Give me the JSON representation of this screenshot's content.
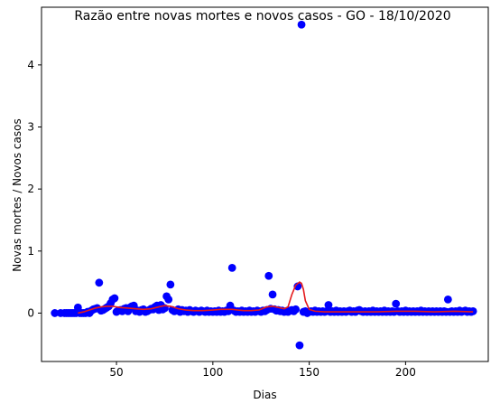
{
  "chart_data": {
    "type": "scatter",
    "title": "Razão entre novas mortes e novos casos - GO - 18/10/2020",
    "xlabel": "Dias",
    "ylabel": "Novas mortes / Novos casos",
    "xlim": [
      11.1,
      242.9
    ],
    "ylim": [
      -0.78,
      4.93
    ],
    "xticks": [
      50,
      100,
      150,
      200
    ],
    "yticks": [
      0,
      1,
      2,
      3,
      4
    ],
    "grid": false,
    "colors": {
      "points": "#0000ff",
      "trend": "#e41a1c"
    },
    "series": [
      {
        "kind": "points",
        "points": [
          [
            18,
            0.0
          ],
          [
            21,
            0.0
          ],
          [
            23,
            0.0
          ],
          [
            24,
            0.0
          ],
          [
            25,
            0.0
          ],
          [
            26,
            0.0
          ],
          [
            27,
            0.0
          ],
          [
            28,
            0.0
          ],
          [
            29,
            0.0
          ],
          [
            30,
            0.09
          ],
          [
            31,
            0.0
          ],
          [
            32,
            0.0
          ],
          [
            33,
            0.0
          ],
          [
            34,
            0.0
          ],
          [
            35,
            0.02
          ],
          [
            36,
            0.0
          ],
          [
            37,
            0.04
          ],
          [
            38,
            0.06
          ],
          [
            39,
            0.07
          ],
          [
            40,
            0.08
          ],
          [
            41,
            0.49
          ],
          [
            42,
            0.04
          ],
          [
            43,
            0.05
          ],
          [
            44,
            0.07
          ],
          [
            45,
            0.09
          ],
          [
            46,
            0.11
          ],
          [
            47,
            0.16
          ],
          [
            48,
            0.22
          ],
          [
            49,
            0.24
          ],
          [
            50,
            0.02
          ],
          [
            51,
            0.04
          ],
          [
            52,
            0.05
          ],
          [
            53,
            0.03
          ],
          [
            54,
            0.07
          ],
          [
            55,
            0.08
          ],
          [
            56,
            0.03
          ],
          [
            57,
            0.09
          ],
          [
            58,
            0.11
          ],
          [
            59,
            0.12
          ],
          [
            60,
            0.03
          ],
          [
            61,
            0.04
          ],
          [
            62,
            0.02
          ],
          [
            63,
            0.05
          ],
          [
            64,
            0.06
          ],
          [
            65,
            0.02
          ],
          [
            66,
            0.03
          ],
          [
            67,
            0.05
          ],
          [
            68,
            0.07
          ],
          [
            69,
            0.06
          ],
          [
            70,
            0.1
          ],
          [
            71,
            0.12
          ],
          [
            72,
            0.05
          ],
          [
            73,
            0.13
          ],
          [
            74,
            0.06
          ],
          [
            75,
            0.08
          ],
          [
            76,
            0.27
          ],
          [
            77,
            0.22
          ],
          [
            78,
            0.46
          ],
          [
            79,
            0.05
          ],
          [
            80,
            0.03
          ],
          [
            81,
            0.04
          ],
          [
            82,
            0.06
          ],
          [
            83,
            0.02
          ],
          [
            84,
            0.05
          ],
          [
            85,
            0.03
          ],
          [
            86,
            0.04
          ],
          [
            87,
            0.02
          ],
          [
            88,
            0.05
          ],
          [
            89,
            0.03
          ],
          [
            90,
            0.02
          ],
          [
            91,
            0.04
          ],
          [
            92,
            0.03
          ],
          [
            93,
            0.02
          ],
          [
            94,
            0.04
          ],
          [
            95,
            0.03
          ],
          [
            96,
            0.02
          ],
          [
            97,
            0.04
          ],
          [
            98,
            0.02
          ],
          [
            99,
            0.03
          ],
          [
            100,
            0.02
          ],
          [
            101,
            0.03
          ],
          [
            102,
            0.02
          ],
          [
            103,
            0.04
          ],
          [
            104,
            0.02
          ],
          [
            105,
            0.03
          ],
          [
            106,
            0.02
          ],
          [
            107,
            0.04
          ],
          [
            108,
            0.03
          ],
          [
            109,
            0.12
          ],
          [
            110,
            0.73
          ],
          [
            111,
            0.04
          ],
          [
            112,
            0.02
          ],
          [
            113,
            0.03
          ],
          [
            114,
            0.02
          ],
          [
            115,
            0.04
          ],
          [
            116,
            0.02
          ],
          [
            117,
            0.03
          ],
          [
            118,
            0.02
          ],
          [
            119,
            0.04
          ],
          [
            120,
            0.02
          ],
          [
            121,
            0.03
          ],
          [
            122,
            0.02
          ],
          [
            123,
            0.04
          ],
          [
            124,
            0.03
          ],
          [
            125,
            0.02
          ],
          [
            126,
            0.04
          ],
          [
            127,
            0.03
          ],
          [
            128,
            0.05
          ],
          [
            129,
            0.6
          ],
          [
            130,
            0.07
          ],
          [
            131,
            0.3
          ],
          [
            132,
            0.06
          ],
          [
            133,
            0.04
          ],
          [
            134,
            0.05
          ],
          [
            135,
            0.03
          ],
          [
            136,
            0.04
          ],
          [
            137,
            0.02
          ],
          [
            138,
            0.03
          ],
          [
            139,
            0.02
          ],
          [
            140,
            0.04
          ],
          [
            141,
            0.05
          ],
          [
            142,
            0.03
          ],
          [
            143,
            0.06
          ],
          [
            144,
            0.43
          ],
          [
            145,
            -0.52
          ],
          [
            146,
            4.65
          ],
          [
            147,
            0.02
          ],
          [
            148,
            0.03
          ],
          [
            149,
            0.0
          ],
          [
            150,
            0.02
          ],
          [
            151,
            0.03
          ],
          [
            152,
            0.02
          ],
          [
            153,
            0.04
          ],
          [
            154,
            0.02
          ],
          [
            155,
            0.03
          ],
          [
            156,
            0.02
          ],
          [
            157,
            0.03
          ],
          [
            158,
            0.02
          ],
          [
            159,
            0.03
          ],
          [
            160,
            0.13
          ],
          [
            161,
            0.02
          ],
          [
            162,
            0.03
          ],
          [
            163,
            0.02
          ],
          [
            164,
            0.04
          ],
          [
            165,
            0.02
          ],
          [
            166,
            0.03
          ],
          [
            167,
            0.02
          ],
          [
            168,
            0.03
          ],
          [
            169,
            0.02
          ],
          [
            170,
            0.03
          ],
          [
            171,
            0.04
          ],
          [
            172,
            0.02
          ],
          [
            173,
            0.03
          ],
          [
            174,
            0.02
          ],
          [
            175,
            0.04
          ],
          [
            176,
            0.05
          ],
          [
            177,
            0.03
          ],
          [
            178,
            0.02
          ],
          [
            179,
            0.03
          ],
          [
            180,
            0.02
          ],
          [
            181,
            0.03
          ],
          [
            182,
            0.02
          ],
          [
            183,
            0.04
          ],
          [
            184,
            0.02
          ],
          [
            185,
            0.03
          ],
          [
            186,
            0.02
          ],
          [
            187,
            0.03
          ],
          [
            188,
            0.02
          ],
          [
            189,
            0.04
          ],
          [
            190,
            0.02
          ],
          [
            191,
            0.03
          ],
          [
            192,
            0.02
          ],
          [
            193,
            0.03
          ],
          [
            194,
            0.02
          ],
          [
            195,
            0.15
          ],
          [
            196,
            0.03
          ],
          [
            197,
            0.02
          ],
          [
            198,
            0.03
          ],
          [
            199,
            0.02
          ],
          [
            200,
            0.04
          ],
          [
            201,
            0.02
          ],
          [
            202,
            0.03
          ],
          [
            203,
            0.02
          ],
          [
            204,
            0.03
          ],
          [
            205,
            0.02
          ],
          [
            206,
            0.03
          ],
          [
            207,
            0.02
          ],
          [
            208,
            0.04
          ],
          [
            209,
            0.02
          ],
          [
            210,
            0.03
          ],
          [
            211,
            0.02
          ],
          [
            212,
            0.03
          ],
          [
            213,
            0.02
          ],
          [
            214,
            0.03
          ],
          [
            215,
            0.02
          ],
          [
            216,
            0.03
          ],
          [
            217,
            0.02
          ],
          [
            218,
            0.03
          ],
          [
            219,
            0.02
          ],
          [
            220,
            0.03
          ],
          [
            221,
            0.02
          ],
          [
            222,
            0.22
          ],
          [
            223,
            0.02
          ],
          [
            224,
            0.03
          ],
          [
            225,
            0.02
          ],
          [
            226,
            0.03
          ],
          [
            227,
            0.02
          ],
          [
            228,
            0.04
          ],
          [
            229,
            0.02
          ],
          [
            230,
            0.03
          ],
          [
            231,
            0.04
          ],
          [
            232,
            0.02
          ],
          [
            233,
            0.03
          ],
          [
            234,
            0.02
          ],
          [
            235,
            0.03
          ]
        ]
      },
      {
        "kind": "line",
        "points": [
          [
            30,
            0.0
          ],
          [
            33,
            0.02
          ],
          [
            36,
            0.05
          ],
          [
            39,
            0.08
          ],
          [
            42,
            0.1
          ],
          [
            45,
            0.11
          ],
          [
            48,
            0.11
          ],
          [
            52,
            0.09
          ],
          [
            56,
            0.08
          ],
          [
            60,
            0.07
          ],
          [
            64,
            0.06
          ],
          [
            68,
            0.07
          ],
          [
            72,
            0.1
          ],
          [
            75,
            0.12
          ],
          [
            78,
            0.11
          ],
          [
            82,
            0.07
          ],
          [
            86,
            0.05
          ],
          [
            90,
            0.04
          ],
          [
            95,
            0.04
          ],
          [
            100,
            0.05
          ],
          [
            104,
            0.06
          ],
          [
            108,
            0.06
          ],
          [
            110,
            0.06
          ],
          [
            113,
            0.05
          ],
          [
            116,
            0.04
          ],
          [
            120,
            0.04
          ],
          [
            124,
            0.05
          ],
          [
            128,
            0.1
          ],
          [
            131,
            0.11
          ],
          [
            134,
            0.09
          ],
          [
            137,
            0.07
          ],
          [
            139,
            0.1
          ],
          [
            141,
            0.3
          ],
          [
            143,
            0.45
          ],
          [
            145,
            0.5
          ],
          [
            146,
            0.48
          ],
          [
            147,
            0.38
          ],
          [
            148,
            0.2
          ],
          [
            150,
            0.06
          ],
          [
            153,
            0.03
          ],
          [
            158,
            0.02
          ],
          [
            165,
            0.02
          ],
          [
            175,
            0.02
          ],
          [
            185,
            0.02
          ],
          [
            195,
            0.03
          ],
          [
            205,
            0.03
          ],
          [
            215,
            0.02
          ],
          [
            225,
            0.03
          ],
          [
            235,
            0.02
          ]
        ]
      }
    ]
  }
}
